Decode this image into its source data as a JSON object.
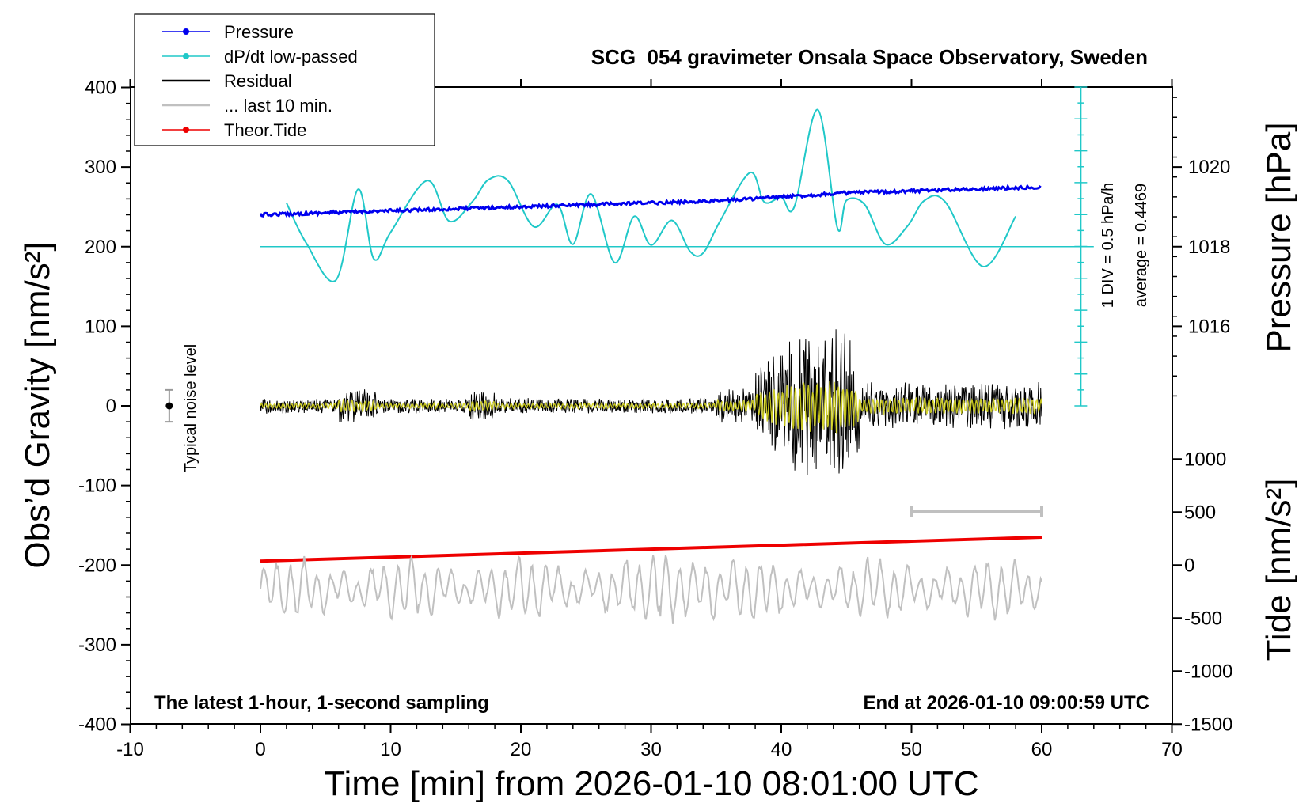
{
  "chart_data": {
    "type": "line",
    "title": "SCG_054 gravimeter Onsala Space Observatory, Sweden",
    "xlabel": "Time [min] from 2026-01-10 08:01:00 UTC",
    "ylabel_left": "Obs’d Gravity [nm/s²]",
    "ylabel_right_top": "Pressure [hPa]",
    "ylabel_right_bottom": "Tide [nm/s²]",
    "xlim": [
      -10,
      70
    ],
    "xticks": [
      "-10",
      "0",
      "10",
      "20",
      "30",
      "40",
      "50",
      "60",
      "70"
    ],
    "left_ylim": [
      -400,
      400
    ],
    "left_yticks": [
      "400",
      "300",
      "200",
      "100",
      "0",
      "-100",
      "-200",
      "-300",
      "-400"
    ],
    "pressure_ticks": [
      "1020",
      "1018",
      "1016"
    ],
    "tide_ticks": [
      "1000",
      "500",
      "0",
      "-500",
      "-1000",
      "-1500"
    ],
    "legend_position": "top-left",
    "legend": [
      {
        "label": "Pressure",
        "color": "#0000ee",
        "marker": true
      },
      {
        "label": "dP/dt low-passed",
        "color": "#20c8c8",
        "marker": true
      },
      {
        "label": "Residual",
        "color": "#000000",
        "marker": false
      },
      {
        "label": "... last 10 min.",
        "color": "#c0c0c0",
        "marker": false
      },
      {
        "label": "Theor.Tide",
        "color": "#ee0000",
        "marker": true
      }
    ],
    "dpdt_scale_label": "1 DIV = 0.5 hPa/h",
    "dpdt_average_label": "average = 0.4469",
    "noise_label": "Typical noise level",
    "bottom_left_note": "The latest 1-hour, 1-second sampling",
    "bottom_right_note": "End at 2026-01-10 09:00:59 UTC",
    "series": [
      {
        "name": "Pressure",
        "color": "#0000ee",
        "x": [
          0,
          5,
          10,
          15,
          20,
          25,
          30,
          35,
          40,
          45,
          50,
          55,
          60
        ],
        "y": [
          1018.8,
          1018.85,
          1018.9,
          1018.95,
          1019.0,
          1019.05,
          1019.1,
          1019.15,
          1019.25,
          1019.35,
          1019.4,
          1019.45,
          1019.5
        ]
      },
      {
        "name": "dP/dt low-passed",
        "color": "#20c8c8",
        "x": [
          2,
          3.5,
          5.8,
          7.5,
          8.7,
          10,
          12.8,
          14.5,
          16.3,
          17.5,
          19,
          21,
          22.8,
          24,
          25.4,
          27.2,
          28.7,
          30,
          31.6,
          33,
          34,
          35.3,
          37.6,
          38.7,
          40,
          41,
          42.8,
          44.3,
          45,
          46.4,
          48,
          49.7,
          51,
          52.6,
          55.5,
          58
        ],
        "y": [
          255,
          205,
          158,
          272,
          185,
          218,
          283,
          232,
          257,
          284,
          283,
          225,
          253,
          203,
          266,
          180,
          238,
          202,
          233,
          194,
          192,
          232,
          293,
          256,
          262,
          250,
          372,
          224,
          258,
          253,
          203,
          226,
          258,
          256,
          175,
          238
        ]
      },
      {
        "name": "Residual",
        "color": "#000000",
        "x": [
          0,
          10,
          20,
          30,
          38,
          40,
          41,
          42,
          43,
          44,
          45,
          46,
          50,
          55,
          60
        ],
        "y": [
          0,
          0,
          0,
          0,
          0,
          0,
          0,
          0,
          0,
          0,
          0,
          0,
          0,
          0,
          0
        ]
      },
      {
        "name": "... last 10 min.",
        "color": "#c0c0c0",
        "x": [
          0,
          60
        ],
        "y": [
          -230,
          -230
        ]
      },
      {
        "name": "Theor.Tide",
        "color": "#ee0000",
        "x": [
          0,
          10,
          20,
          30,
          40,
          50,
          60
        ],
        "y": [
          -195,
          -190,
          -185,
          -180,
          -175,
          -170,
          -165
        ]
      }
    ],
    "noise_bar": {
      "x": -7,
      "y": 0,
      "err": 20
    },
    "grey_bar": {
      "x_start": 50,
      "x_end": 60
    }
  }
}
